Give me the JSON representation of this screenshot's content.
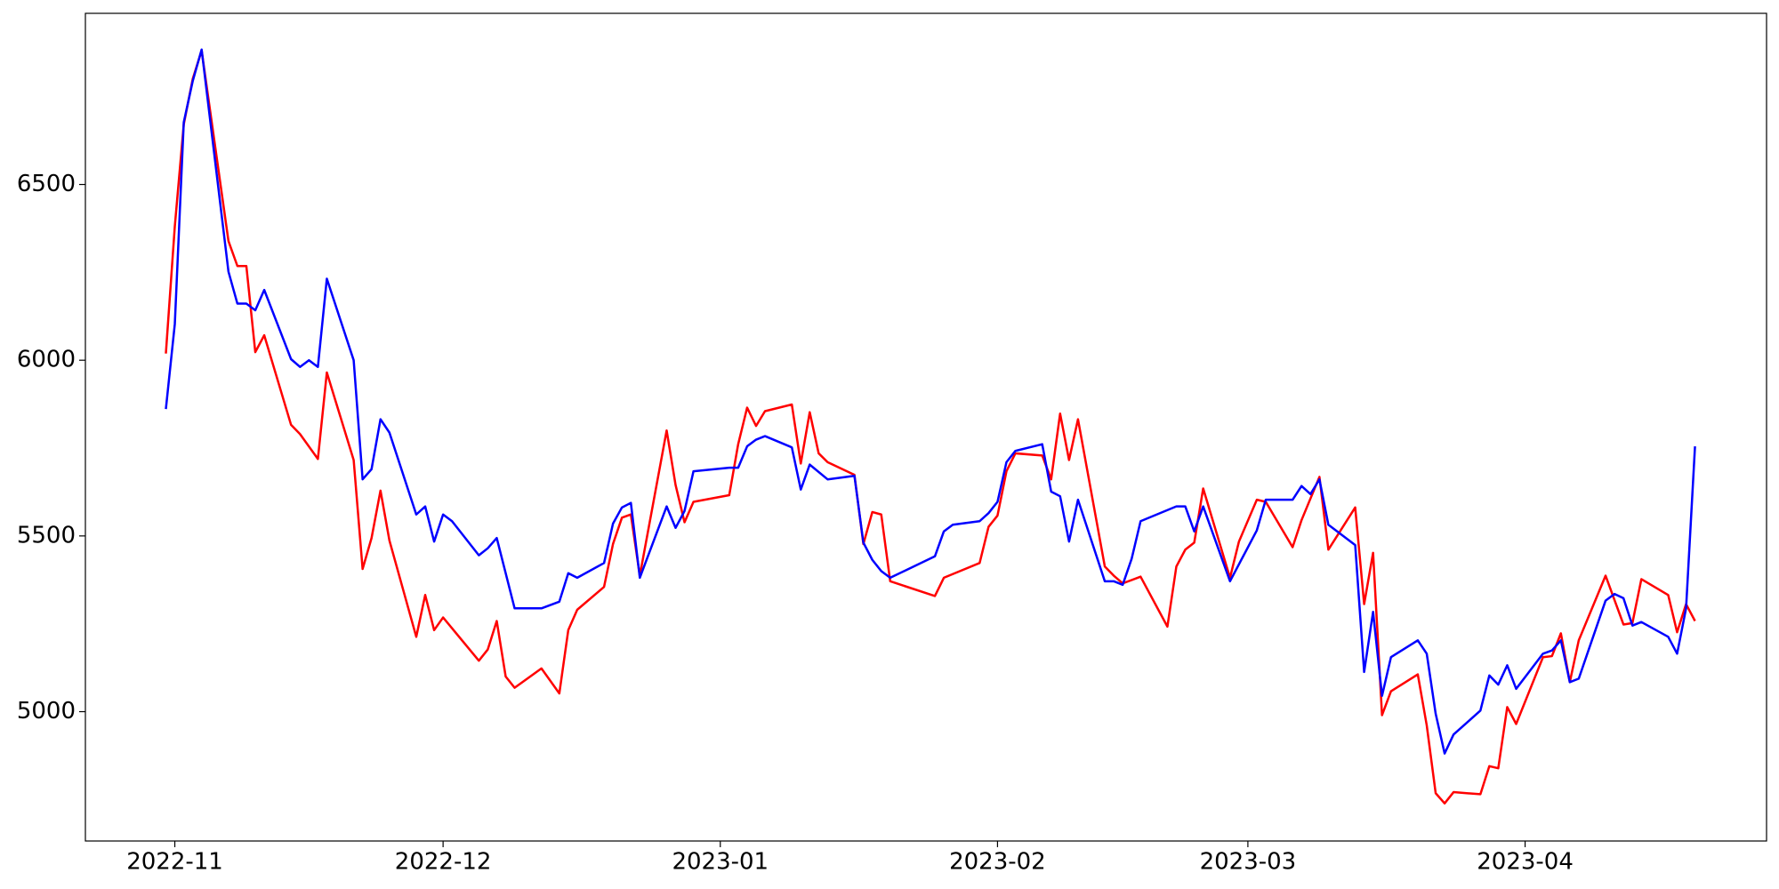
{
  "chart_data": {
    "type": "line",
    "xlim": [
      "2022-10-22",
      "2023-04-28"
    ],
    "xticks": [
      {
        "value": "2022-11-01",
        "label": "2022-11"
      },
      {
        "value": "2022-12-01",
        "label": "2022-12"
      },
      {
        "value": "2023-01-01",
        "label": "2023-01"
      },
      {
        "value": "2023-02-01",
        "label": "2023-02"
      },
      {
        "value": "2023-03-01",
        "label": "2023-03"
      },
      {
        "value": "2023-04-01",
        "label": "2023-04"
      }
    ],
    "ylim": [
      4632,
      6987
    ],
    "yticks": [
      5000,
      5500,
      6000,
      6500
    ],
    "grid": false,
    "series": [
      {
        "color": "#ff0000",
        "x": [
          "2022-10-31",
          "2022-11-01",
          "2022-11-02",
          "2022-11-03",
          "2022-11-04",
          "2022-11-07",
          "2022-11-08",
          "2022-11-09",
          "2022-11-10",
          "2022-11-11",
          "2022-11-14",
          "2022-11-15",
          "2022-11-17",
          "2022-11-18",
          "2022-11-21",
          "2022-11-22",
          "2022-11-23",
          "2022-11-24",
          "2022-11-25",
          "2022-11-28",
          "2022-11-29",
          "2022-11-30",
          "2022-12-01",
          "2022-12-05",
          "2022-12-06",
          "2022-12-07",
          "2022-12-08",
          "2022-12-09",
          "2022-12-12",
          "2022-12-14",
          "2022-12-15",
          "2022-12-16",
          "2022-12-19",
          "2022-12-20",
          "2022-12-21",
          "2022-12-22",
          "2022-12-23",
          "2022-12-26",
          "2022-12-27",
          "2022-12-28",
          "2022-12-29",
          "2023-01-02",
          "2023-01-03",
          "2023-01-04",
          "2023-01-05",
          "2023-01-06",
          "2023-01-09",
          "2023-01-10",
          "2023-01-11",
          "2023-01-12",
          "2023-01-13",
          "2023-01-16",
          "2023-01-17",
          "2023-01-18",
          "2023-01-19",
          "2023-01-20",
          "2023-01-25",
          "2023-01-26",
          "2023-01-30",
          "2023-01-31",
          "2023-02-01",
          "2023-02-02",
          "2023-02-03",
          "2023-02-06",
          "2023-02-07",
          "2023-02-08",
          "2023-02-09",
          "2023-02-10",
          "2023-02-13",
          "2023-02-14",
          "2023-02-15",
          "2023-02-17",
          "2023-02-20",
          "2023-02-21",
          "2023-02-22",
          "2023-02-23",
          "2023-02-24",
          "2023-02-27",
          "2023-02-28",
          "2023-03-02",
          "2023-03-03",
          "2023-03-06",
          "2023-03-07",
          "2023-03-09",
          "2023-03-10",
          "2023-03-13",
          "2023-03-14",
          "2023-03-15",
          "2023-03-16",
          "2023-03-17",
          "2023-03-20",
          "2023-03-21",
          "2023-03-22",
          "2023-03-23",
          "2023-03-24",
          "2023-03-27",
          "2023-03-28",
          "2023-03-29",
          "2023-03-30",
          "2023-03-31",
          "2023-04-03",
          "2023-04-04",
          "2023-04-05",
          "2023-04-06",
          "2023-04-07",
          "2023-04-10",
          "2023-04-12",
          "2023-04-13",
          "2023-04-14",
          "2023-04-17",
          "2023-04-18",
          "2023-04-19",
          "2023-04-20"
        ],
        "values": [
          6019,
          6381,
          6671,
          6800,
          6881,
          6339,
          6268,
          6268,
          6023,
          6071,
          5816,
          5790,
          5719,
          5965,
          5716,
          5406,
          5494,
          5629,
          5487,
          5213,
          5332,
          5232,
          5268,
          5145,
          5177,
          5258,
          5100,
          5068,
          5123,
          5052,
          5232,
          5290,
          5355,
          5477,
          5552,
          5561,
          5387,
          5800,
          5645,
          5539,
          5597,
          5616,
          5761,
          5865,
          5813,
          5855,
          5874,
          5706,
          5852,
          5735,
          5710,
          5674,
          5477,
          5568,
          5561,
          5371,
          5329,
          5381,
          5423,
          5526,
          5558,
          5684,
          5735,
          5729,
          5661,
          5848,
          5716,
          5832,
          5413,
          5387,
          5365,
          5384,
          5242,
          5413,
          5461,
          5481,
          5635,
          5381,
          5484,
          5603,
          5597,
          5468,
          5545,
          5668,
          5461,
          5581,
          5306,
          5452,
          4990,
          5058,
          5106,
          4961,
          4768,
          4739,
          4771,
          4765,
          4845,
          4839,
          5013,
          4965,
          5155,
          5158,
          5223,
          5084,
          5203,
          5387,
          5248,
          5252,
          5377,
          5332,
          5226,
          5306,
          5258
        ]
      },
      {
        "color": "#0000ff",
        "x": [
          "2022-10-31",
          "2022-11-01",
          "2022-11-02",
          "2022-11-03",
          "2022-11-04",
          "2022-11-07",
          "2022-11-08",
          "2022-11-09",
          "2022-11-10",
          "2022-11-11",
          "2022-11-14",
          "2022-11-15",
          "2022-11-16",
          "2022-11-17",
          "2022-11-18",
          "2022-11-21",
          "2022-11-22",
          "2022-11-23",
          "2022-11-24",
          "2022-11-25",
          "2022-11-28",
          "2022-11-29",
          "2022-11-30",
          "2022-12-01",
          "2022-12-02",
          "2022-12-05",
          "2022-12-06",
          "2022-12-07",
          "2022-12-09",
          "2022-12-12",
          "2022-12-14",
          "2022-12-15",
          "2022-12-16",
          "2022-12-19",
          "2022-12-20",
          "2022-12-21",
          "2022-12-22",
          "2022-12-23",
          "2022-12-26",
          "2022-12-27",
          "2022-12-28",
          "2022-12-29",
          "2023-01-02",
          "2023-01-03",
          "2023-01-04",
          "2023-01-05",
          "2023-01-06",
          "2023-01-09",
          "2023-01-10",
          "2023-01-11",
          "2023-01-13",
          "2023-01-16",
          "2023-01-17",
          "2023-01-18",
          "2023-01-19",
          "2023-01-20",
          "2023-01-25",
          "2023-01-26",
          "2023-01-27",
          "2023-01-30",
          "2023-01-31",
          "2023-02-01",
          "2023-02-02",
          "2023-02-03",
          "2023-02-06",
          "2023-02-07",
          "2023-02-08",
          "2023-02-09",
          "2023-02-10",
          "2023-02-13",
          "2023-02-14",
          "2023-02-15",
          "2023-02-16",
          "2023-02-17",
          "2023-02-21",
          "2023-02-22",
          "2023-02-23",
          "2023-02-24",
          "2023-02-27",
          "2023-03-02",
          "2023-03-03",
          "2023-03-06",
          "2023-03-07",
          "2023-03-08",
          "2023-03-09",
          "2023-03-10",
          "2023-03-13",
          "2023-03-14",
          "2023-03-15",
          "2023-03-16",
          "2023-03-17",
          "2023-03-20",
          "2023-03-21",
          "2023-03-22",
          "2023-03-23",
          "2023-03-24",
          "2023-03-27",
          "2023-03-28",
          "2023-03-29",
          "2023-03-30",
          "2023-03-31",
          "2023-04-03",
          "2023-04-04",
          "2023-04-05",
          "2023-04-06",
          "2023-04-07",
          "2023-04-10",
          "2023-04-11",
          "2023-04-12",
          "2023-04-13",
          "2023-04-14",
          "2023-04-17",
          "2023-04-18",
          "2023-04-19",
          "2023-04-20"
        ],
        "values": [
          5861,
          6103,
          6677,
          6794,
          6884,
          6252,
          6161,
          6161,
          6142,
          6200,
          6003,
          5981,
          6000,
          5981,
          6232,
          6000,
          5661,
          5690,
          5832,
          5794,
          5561,
          5584,
          5484,
          5561,
          5542,
          5445,
          5465,
          5494,
          5294,
          5294,
          5313,
          5394,
          5381,
          5423,
          5535,
          5581,
          5594,
          5381,
          5584,
          5523,
          5571,
          5684,
          5694,
          5694,
          5755,
          5774,
          5784,
          5752,
          5632,
          5703,
          5661,
          5671,
          5481,
          5432,
          5400,
          5381,
          5442,
          5513,
          5532,
          5542,
          5565,
          5597,
          5710,
          5742,
          5761,
          5626,
          5613,
          5484,
          5603,
          5371,
          5371,
          5361,
          5435,
          5542,
          5584,
          5584,
          5513,
          5584,
          5371,
          5516,
          5603,
          5603,
          5642,
          5619,
          5661,
          5532,
          5474,
          5113,
          5284,
          5045,
          5155,
          5203,
          5165,
          4994,
          4881,
          4935,
          5003,
          5103,
          5077,
          5132,
          5065,
          5165,
          5174,
          5203,
          5084,
          5094,
          5316,
          5335,
          5323,
          5245,
          5255,
          5213,
          5165,
          5294,
          5755
        ]
      }
    ]
  }
}
